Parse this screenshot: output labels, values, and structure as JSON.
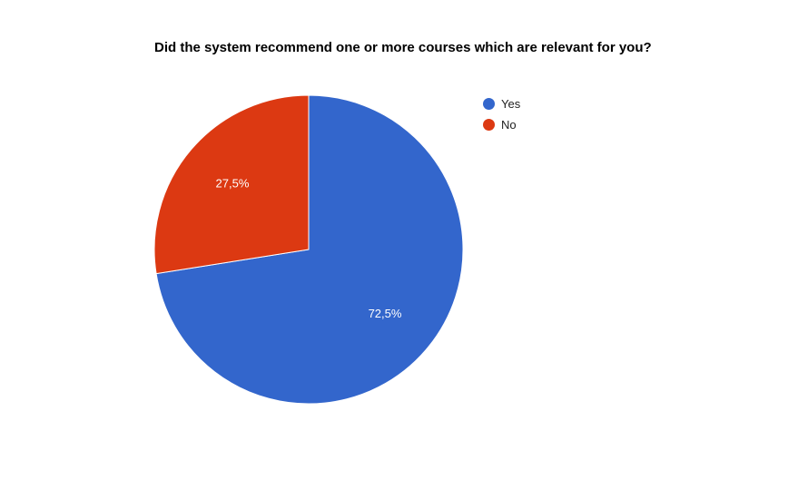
{
  "chart_data": {
    "type": "pie",
    "title": "Did the system recommend one or more courses which are relevant for you?",
    "slices": [
      {
        "label": "Yes",
        "value": 72.5,
        "display": "72,5%",
        "color": "#3366cc"
      },
      {
        "label": "No",
        "value": 27.5,
        "display": "27,5%",
        "color": "#dc3912"
      }
    ],
    "legend_position": "right"
  }
}
